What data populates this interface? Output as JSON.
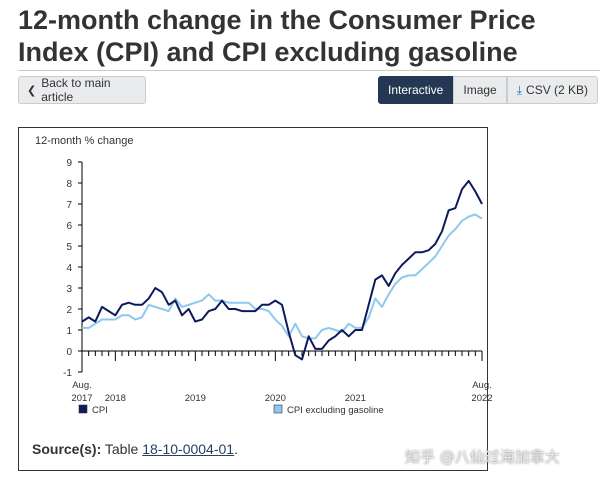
{
  "page": {
    "title": "12-month change in the Consumer Price Index (CPI) and CPI excluding gasoline"
  },
  "toolbar": {
    "back_label": "Back to main article",
    "tabs": [
      {
        "label": "Interactive",
        "active": true
      },
      {
        "label": "Image",
        "active": false
      },
      {
        "label": "CSV (2 KB)",
        "active": false
      }
    ]
  },
  "source": {
    "label": "Source(s):",
    "prefix": "Table",
    "link": "18-10-0004-01",
    "suffix": "."
  },
  "watermark": "知乎 @八仙过海加拿大",
  "chart_data": {
    "type": "line",
    "ylabel": "12-month % change",
    "ylim": [
      -1,
      9
    ],
    "yticks": [
      -1,
      0,
      1,
      2,
      3,
      4,
      5,
      6,
      7,
      8,
      9
    ],
    "x_tick_labels": [
      {
        "label": "Aug. 2017",
        "month_index": 0
      },
      {
        "label": "2018",
        "month_index": 5
      },
      {
        "label": "2019",
        "month_index": 17
      },
      {
        "label": "2020",
        "month_index": 29
      },
      {
        "label": "2021",
        "month_index": 41
      },
      {
        "label": "Aug. 2022",
        "month_index": 60
      }
    ],
    "x_start": "2017-08",
    "x_end": "2022-08",
    "colors": {
      "cpi": "#0d1b5e",
      "cpi_ex_gas": "#8ec8ef",
      "axis": "#000000",
      "grid": "#cccccc"
    },
    "series": [
      {
        "name": "CPI",
        "values": [
          1.4,
          1.6,
          1.4,
          2.1,
          1.9,
          1.7,
          2.2,
          2.3,
          2.2,
          2.2,
          2.5,
          3.0,
          2.8,
          2.2,
          2.4,
          1.7,
          2.0,
          1.4,
          1.5,
          1.9,
          2.0,
          2.4,
          2.0,
          2.0,
          1.9,
          1.9,
          1.9,
          2.2,
          2.2,
          2.4,
          2.2,
          0.9,
          -0.2,
          -0.4,
          0.7,
          0.1,
          0.1,
          0.5,
          0.7,
          1.0,
          0.7,
          1.0,
          1.0,
          2.2,
          3.4,
          3.6,
          3.1,
          3.7,
          4.1,
          4.4,
          4.7,
          4.7,
          4.8,
          5.1,
          5.7,
          6.7,
          6.8,
          7.7,
          8.1,
          7.6,
          7.0
        ]
      },
      {
        "name": "CPI excluding gasoline",
        "values": [
          1.1,
          1.1,
          1.3,
          1.5,
          1.5,
          1.5,
          1.7,
          1.7,
          1.5,
          1.6,
          2.2,
          2.1,
          2.0,
          1.9,
          2.5,
          2.1,
          2.2,
          2.3,
          2.4,
          2.7,
          2.4,
          2.4,
          2.3,
          2.3,
          2.3,
          2.3,
          2.0,
          2.0,
          1.9,
          1.5,
          1.2,
          0.7,
          1.3,
          0.7,
          0.6,
          0.6,
          1.0,
          1.1,
          1.0,
          0.9,
          1.3,
          1.1,
          1.1,
          1.6,
          2.5,
          2.1,
          2.7,
          3.2,
          3.5,
          3.6,
          3.6,
          3.9,
          4.2,
          4.5,
          5.0,
          5.5,
          5.8,
          6.2,
          6.4,
          6.5,
          6.3
        ]
      }
    ],
    "grid": false,
    "legend_position": "bottom"
  }
}
